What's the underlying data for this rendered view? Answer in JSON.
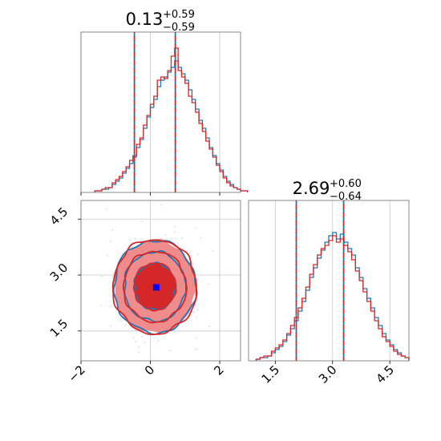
{
  "colors": {
    "blue": "#1f77b4",
    "red": "#d62728",
    "red_light": "#f08c8c",
    "marker": "#0000ff",
    "grid": "#c8c8c8"
  },
  "chart_data": [
    {
      "type": "histogram",
      "panel": "top-left",
      "title": {
        "main": "0.13",
        "sup": "+0.59",
        "sub": "−0.59"
      },
      "xlim": [
        -2.0,
        2.6
      ],
      "ylim": [
        0,
        1
      ],
      "grid": true,
      "bin_start": -1.6,
      "bin_width": 0.1,
      "series": [
        {
          "color": "blue",
          "values": [
            0.01,
            0.01,
            0.02,
            0.02,
            0.03,
            0.05,
            0.07,
            0.09,
            0.12,
            0.15,
            0.18,
            0.22,
            0.28,
            0.33,
            0.4,
            0.47,
            0.53,
            0.58,
            0.66,
            0.7,
            0.72,
            0.75,
            0.78,
            0.82,
            0.78,
            0.74,
            0.7,
            0.64,
            0.58,
            0.52,
            0.45,
            0.4,
            0.34,
            0.28,
            0.23,
            0.18,
            0.14,
            0.1,
            0.07,
            0.05,
            0.03,
            0.02,
            0.01,
            0.01
          ]
        },
        {
          "color": "red",
          "values": [
            0.01,
            0.01,
            0.02,
            0.03,
            0.03,
            0.06,
            0.08,
            0.1,
            0.13,
            0.16,
            0.2,
            0.23,
            0.3,
            0.34,
            0.42,
            0.48,
            0.55,
            0.6,
            0.7,
            0.72,
            0.71,
            0.76,
            0.85,
            0.9,
            0.76,
            0.72,
            0.68,
            0.6,
            0.56,
            0.5,
            0.43,
            0.38,
            0.32,
            0.27,
            0.22,
            0.17,
            0.13,
            0.09,
            0.06,
            0.04,
            0.03,
            0.02,
            0.01,
            0.01
          ]
        }
      ],
      "quantiles": [
        -0.46,
        0.13,
        0.72
      ]
    },
    {
      "type": "histogram",
      "panel": "bottom-right",
      "title": {
        "main": "2.69",
        "sup": "+0.60",
        "sub": "−0.64"
      },
      "xlim": [
        0.8,
        5.0
      ],
      "ylim": [
        0,
        1
      ],
      "grid": true,
      "x_ticks": [
        "1.5",
        "3.0",
        "4.5"
      ],
      "bin_start": 1.0,
      "bin_width": 0.1,
      "series": [
        {
          "color": "blue",
          "values": [
            0.01,
            0.02,
            0.02,
            0.03,
            0.05,
            0.07,
            0.09,
            0.12,
            0.16,
            0.2,
            0.25,
            0.31,
            0.37,
            0.44,
            0.52,
            0.58,
            0.64,
            0.69,
            0.74,
            0.78,
            0.8,
            0.76,
            0.79,
            0.74,
            0.7,
            0.66,
            0.58,
            0.52,
            0.45,
            0.39,
            0.33,
            0.27,
            0.22,
            0.17,
            0.13,
            0.1,
            0.07,
            0.05,
            0.03,
            0.02
          ]
        },
        {
          "color": "red",
          "values": [
            0.01,
            0.02,
            0.03,
            0.03,
            0.06,
            0.08,
            0.1,
            0.13,
            0.17,
            0.22,
            0.27,
            0.33,
            0.39,
            0.46,
            0.54,
            0.6,
            0.66,
            0.7,
            0.72,
            0.75,
            0.78,
            0.74,
            0.76,
            0.72,
            0.68,
            0.63,
            0.56,
            0.5,
            0.43,
            0.37,
            0.31,
            0.25,
            0.2,
            0.15,
            0.12,
            0.09,
            0.06,
            0.04,
            0.03,
            0.02
          ]
        }
      ],
      "quantiles": [
        2.05,
        2.69,
        3.29
      ]
    },
    {
      "type": "contour",
      "panel": "bottom-left",
      "xlim": [
        -2.0,
        2.6
      ],
      "ylim": [
        0.7,
        5.0
      ],
      "grid": true,
      "x_ticks": [
        "−2",
        "0",
        "2"
      ],
      "y_ticks": [
        "1.5",
        "3.0",
        "4.5"
      ],
      "center": [
        0.13,
        2.69
      ],
      "sigma": [
        0.59,
        0.62
      ],
      "contour_levels_sigma": [
        1.0,
        1.5,
        2.0
      ],
      "marker": [
        0.17,
        2.67
      ]
    }
  ]
}
